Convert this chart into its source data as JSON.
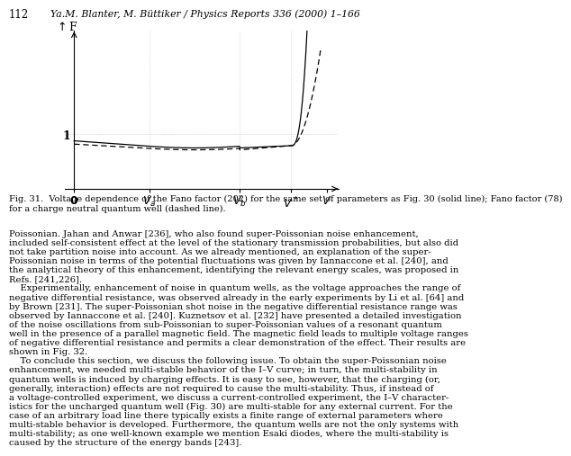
{
  "page_number": "112",
  "header_text": "Ya.M. Blanter, M. Büttiker / Physics Reports 336 (2000) 1–166",
  "fig_caption_line1": "Fig. 31.  Voltage dependence of the Fano factor (202) for the same set of parameters as Fig. 30 (solid line); Fano factor (78)",
  "fig_caption_line2": "for a charge neutral quantum well (dashed line).",
  "body_text": [
    {
      "text": "Poissonian. Jahan and Anwar [236], who also found super-Poissonian noise enhancement,",
      "indent": false
    },
    {
      "text": "included self-consistent effect at the level of the stationary transmission probabilities, but also did",
      "indent": false
    },
    {
      "text": "not take partition noise into account. As we already mentioned, an explanation of the super-",
      "indent": false
    },
    {
      "text": "Poissonian noise in terms of the potential fluctuations was given by Iannaccone et al. [240], and",
      "indent": false
    },
    {
      "text": "the analytical theory of this enhancement, identifying the relevant energy scales, was proposed in",
      "indent": false
    },
    {
      "text": "Refs. [241,226].",
      "indent": false
    },
    {
      "text": "    Experimentally, enhancement of noise in quantum wells, as the voltage approaches the range of",
      "indent": false
    },
    {
      "text": "negative differential resistance, was observed already in the early experiments by Li et al. [64] and",
      "indent": false
    },
    {
      "text": "by Brown [231]. The super-Poissonian shot noise in the negative differential resistance range was",
      "indent": false
    },
    {
      "text": "observed by Iannaccone et al. [240]. Kuznetsov et al. [232] have presented a detailed investigation",
      "indent": false
    },
    {
      "text": "of the noise oscillations from sub-Poissonian to super-Poissonian values of a resonant quantum",
      "indent": false
    },
    {
      "text": "well in the presence of a parallel magnetic field. The magnetic field leads to multiple voltage ranges",
      "indent": false
    },
    {
      "text": "of negative differential resistance and permits a clear demonstration of the effect. Their results are",
      "indent": false
    },
    {
      "text": "shown in Fig. 32.",
      "indent": false
    },
    {
      "text": "    To conclude this section, we discuss the following issue. To obtain the super-Poissonian noise",
      "indent": false
    },
    {
      "text": "enhancement, we needed multi-stable behavior of the I–V curve; in turn, the multi-stability in",
      "indent": false
    },
    {
      "text": "quantum wells is induced by charging effects. It is easy to see, however, that the charging (or,",
      "indent": false
    },
    {
      "text": "generally, interaction) effects are not required to cause the multi-stability. Thus, if instead of",
      "indent": false
    },
    {
      "text": "a voltage-controlled experiment, we discuss a current-controlled experiment, the I–V character-",
      "indent": false
    },
    {
      "text": "istics for the uncharged quantum well (Fig. 30) are multi-stable for any external current. For the",
      "indent": false
    },
    {
      "text": "case of an arbitrary load line there typically exists a finite range of external parameters where",
      "indent": false
    },
    {
      "text": "multi-stable behavior is developed. Furthermore, the quantum wells are not the only systems with",
      "indent": false
    },
    {
      "text": "multi-stability; as one well-known example we mention Esaki diodes, where the multi-stability is",
      "indent": false
    },
    {
      "text": "caused by the structure of the energy bands [243].",
      "indent": false
    }
  ],
  "background_color": "#ffffff",
  "line_color_solid": "#000000",
  "line_color_dashed": "#000000",
  "grid_color": "#bbbbbb",
  "Va": 0.25,
  "Vb": 0.55,
  "Vstar": 0.72,
  "Vmax": 0.82
}
